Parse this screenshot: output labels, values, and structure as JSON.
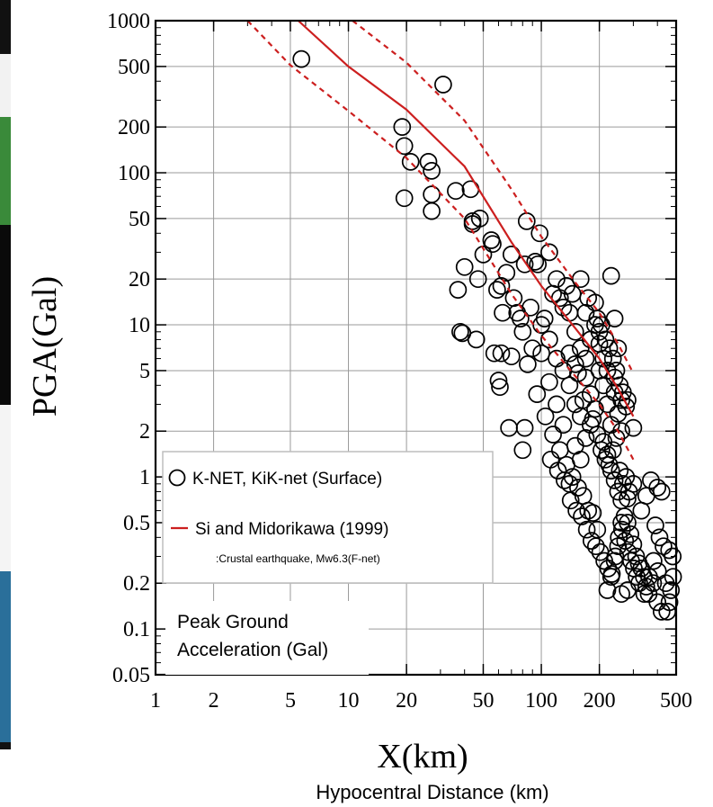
{
  "chart_data": {
    "type": "scatter",
    "xlabel": "X(km)",
    "ylabel": "PGA(Gal)",
    "x_caption": "Hypocentral Distance (km)",
    "x_scale": "log",
    "y_scale": "log",
    "xlim": [
      1,
      500
    ],
    "ylim": [
      0.05,
      1000
    ],
    "grid": true,
    "x_ticks": [
      "1",
      "2",
      "5",
      "10",
      "20",
      "50",
      "100",
      "200",
      "500"
    ],
    "x_tick_values": [
      1,
      2,
      5,
      10,
      20,
      50,
      100,
      200,
      500
    ],
    "y_ticks": [
      "1000",
      "500",
      "200",
      "100",
      "50",
      "20",
      "10",
      "5",
      "2",
      "1",
      "0.5",
      "0.2",
      "0.1",
      "0.05"
    ],
    "y_tick_values": [
      1000,
      500,
      200,
      100,
      50,
      20,
      10,
      5,
      2,
      1,
      0.5,
      0.2,
      0.1,
      0.05
    ],
    "legend": {
      "placement": "lower-left",
      "items": [
        {
          "label": "K-NET, KiK-net (Surface)",
          "marker": "open-circle",
          "color": "#000000"
        },
        {
          "label": "Si and Midorikawa (1999)",
          "marker": "line",
          "color": "#cc1f1f"
        }
      ],
      "note": ":Crustal earthquake, Mw6.3(F-net)"
    },
    "annotation": [
      "Peak Ground",
      "Acceleration (Gal)"
    ],
    "colors": {
      "observations": "#000000",
      "model": "#cc1f1f"
    },
    "series": [
      {
        "name": "K-NET, KiK-net (Surface)",
        "type": "scatter",
        "marker": "open-circle",
        "points": [
          [
            5.7,
            560
          ],
          [
            31,
            380
          ],
          [
            19,
            200
          ],
          [
            19.5,
            150
          ],
          [
            21,
            118
          ],
          [
            26,
            118
          ],
          [
            27,
            103
          ],
          [
            19.5,
            68
          ],
          [
            27,
            72
          ],
          [
            36,
            76
          ],
          [
            43,
            78
          ],
          [
            27,
            56
          ],
          [
            44,
            48
          ],
          [
            48,
            50
          ],
          [
            55,
            36
          ],
          [
            56,
            34
          ],
          [
            44,
            46
          ],
          [
            40,
            24
          ],
          [
            37,
            17
          ],
          [
            47,
            20
          ],
          [
            50,
            29
          ],
          [
            38,
            9
          ],
          [
            39,
            8.8
          ],
          [
            46,
            8
          ],
          [
            59,
            17
          ],
          [
            62,
            18
          ],
          [
            63,
            12
          ],
          [
            57,
            6.5
          ],
          [
            60,
            4.3
          ],
          [
            61,
            3.9
          ],
          [
            70,
            6.2
          ],
          [
            68,
            2.1
          ],
          [
            82,
            2.1
          ],
          [
            80,
            1.5
          ],
          [
            82,
            25
          ],
          [
            93,
            26
          ],
          [
            96,
            25
          ],
          [
            98,
            40
          ],
          [
            84,
            48
          ],
          [
            70,
            29
          ],
          [
            62,
            6.5
          ],
          [
            110,
            30
          ],
          [
            120,
            20
          ],
          [
            125,
            15
          ],
          [
            130,
            13
          ],
          [
            140,
            12
          ],
          [
            150,
            9
          ],
          [
            160,
            20
          ],
          [
            170,
            12
          ],
          [
            180,
            8
          ],
          [
            190,
            14
          ],
          [
            200,
            9
          ],
          [
            210,
            6
          ],
          [
            230,
            21
          ],
          [
            240,
            11
          ],
          [
            250,
            7
          ],
          [
            100,
            10
          ],
          [
            110,
            8
          ],
          [
            120,
            6
          ],
          [
            130,
            5
          ],
          [
            140,
            4
          ],
          [
            150,
            3
          ],
          [
            160,
            2.5
          ],
          [
            170,
            4.5
          ],
          [
            180,
            3.5
          ],
          [
            190,
            2.8
          ],
          [
            200,
            5
          ],
          [
            210,
            4
          ],
          [
            220,
            3
          ],
          [
            230,
            2.2
          ],
          [
            240,
            3.6
          ],
          [
            250,
            2.6
          ],
          [
            260,
            2
          ],
          [
            280,
            3.2
          ],
          [
            300,
            2.1
          ],
          [
            95,
            3.5
          ],
          [
            105,
            2.5
          ],
          [
            115,
            1.9
          ],
          [
            125,
            1.5
          ],
          [
            135,
            1.2
          ],
          [
            145,
            1.0
          ],
          [
            155,
            0.85
          ],
          [
            165,
            0.75
          ],
          [
            175,
            0.6
          ],
          [
            185,
            0.58
          ],
          [
            195,
            0.45
          ],
          [
            140,
            0.9
          ],
          [
            150,
            1.6
          ],
          [
            160,
            1.3
          ],
          [
            170,
            1.8
          ],
          [
            180,
            2.2
          ],
          [
            210,
            1.7
          ],
          [
            220,
            1.4
          ],
          [
            230,
            1.1
          ],
          [
            240,
            0.95
          ],
          [
            250,
            0.8
          ],
          [
            260,
            0.7
          ],
          [
            270,
            0.55
          ],
          [
            280,
            0.5
          ],
          [
            290,
            0.42
          ],
          [
            300,
            0.36
          ],
          [
            310,
            0.3
          ],
          [
            320,
            0.27
          ],
          [
            330,
            0.25
          ],
          [
            340,
            0.22
          ],
          [
            350,
            0.19
          ],
          [
            360,
            0.17
          ],
          [
            380,
            0.2
          ],
          [
            400,
            0.15
          ],
          [
            420,
            0.13
          ],
          [
            450,
            0.13
          ],
          [
            470,
            0.18
          ],
          [
            480,
            0.3
          ],
          [
            390,
            0.48
          ],
          [
            410,
            0.4
          ],
          [
            430,
            0.35
          ],
          [
            460,
            0.33
          ],
          [
            400,
            0.85
          ],
          [
            420,
            0.8
          ],
          [
            370,
            0.95
          ],
          [
            350,
            0.75
          ],
          [
            330,
            0.6
          ],
          [
            300,
            0.9
          ],
          [
            280,
            0.72
          ],
          [
            260,
            0.5
          ],
          [
            250,
            0.35
          ],
          [
            240,
            0.28
          ],
          [
            230,
            0.22
          ],
          [
            220,
            0.18
          ],
          [
            260,
            0.17
          ],
          [
            280,
            0.18
          ],
          [
            120,
            3
          ],
          [
            130,
            2.2
          ],
          [
            150,
            5.5
          ],
          [
            160,
            7
          ],
          [
            170,
            6
          ],
          [
            190,
            10
          ],
          [
            200,
            7.5
          ],
          [
            220,
            5
          ],
          [
            240,
            4.5
          ],
          [
            260,
            3.2
          ],
          [
            110,
            4.2
          ],
          [
            100,
            6.5
          ],
          [
            90,
            7
          ],
          [
            85,
            5.5
          ],
          [
            80,
            9
          ],
          [
            75,
            12
          ],
          [
            72,
            15
          ],
          [
            66,
            22
          ],
          [
            78,
            11
          ],
          [
            88,
            13
          ],
          [
            104,
            11
          ],
          [
            115,
            16
          ],
          [
            135,
            18
          ],
          [
            145,
            16
          ],
          [
            175,
            15
          ],
          [
            195,
            11
          ],
          [
            205,
            10
          ],
          [
            215,
            8
          ],
          [
            225,
            7
          ],
          [
            235,
            6
          ],
          [
            245,
            5
          ],
          [
            255,
            4
          ],
          [
            265,
            3.6
          ],
          [
            275,
            2.9
          ],
          [
            140,
            6.5
          ],
          [
            155,
            4.8
          ],
          [
            165,
            3.2
          ],
          [
            185,
            2.4
          ],
          [
            195,
            1.9
          ],
          [
            205,
            1.5
          ],
          [
            215,
            1.3
          ],
          [
            225,
            1.2
          ],
          [
            235,
            1.5
          ],
          [
            245,
            1.8
          ],
          [
            255,
            1.1
          ],
          [
            265,
            0.9
          ],
          [
            275,
            1.0
          ],
          [
            285,
            0.8
          ],
          [
            112,
            1.3
          ],
          [
            122,
            1.1
          ],
          [
            132,
            0.95
          ],
          [
            142,
            0.7
          ],
          [
            152,
            0.6
          ],
          [
            162,
            0.55
          ],
          [
            172,
            0.45
          ],
          [
            182,
            0.38
          ],
          [
            192,
            0.35
          ],
          [
            202,
            0.32
          ],
          [
            212,
            0.28
          ],
          [
            222,
            0.25
          ],
          [
            232,
            0.23
          ],
          [
            242,
            0.3
          ],
          [
            252,
            0.4
          ],
          [
            262,
            0.45
          ],
          [
            272,
            0.38
          ],
          [
            282,
            0.32
          ],
          [
            292,
            0.28
          ],
          [
            302,
            0.25
          ],
          [
            312,
            0.22
          ],
          [
            322,
            0.2
          ],
          [
            342,
            0.17
          ],
          [
            362,
            0.22
          ],
          [
            382,
            0.28
          ],
          [
            402,
            0.24
          ],
          [
            442,
            0.2
          ],
          [
            462,
            0.15
          ],
          [
            482,
            0.22
          ]
        ]
      },
      {
        "name": "Si and Midorikawa (1999)",
        "type": "line",
        "style": "solid",
        "points": [
          [
            5.5,
            1000
          ],
          [
            10,
            500
          ],
          [
            20,
            260
          ],
          [
            40,
            110
          ],
          [
            70,
            35
          ],
          [
            100,
            18
          ],
          [
            150,
            9.5
          ],
          [
            200,
            6
          ],
          [
            250,
            3.8
          ],
          [
            300,
            2.5
          ]
        ]
      },
      {
        "name": "upper",
        "type": "line",
        "style": "dashed",
        "points": [
          [
            10.5,
            1000
          ],
          [
            20,
            530
          ],
          [
            40,
            220
          ],
          [
            70,
            78
          ],
          [
            100,
            38
          ],
          [
            150,
            19
          ],
          [
            200,
            12
          ],
          [
            250,
            7.5
          ],
          [
            300,
            4.8
          ]
        ]
      },
      {
        "name": "lower",
        "type": "line",
        "style": "dashed",
        "points": [
          [
            3.0,
            1000
          ],
          [
            5,
            510
          ],
          [
            10,
            255
          ],
          [
            20,
            125
          ],
          [
            40,
            50
          ],
          [
            70,
            16
          ],
          [
            100,
            8.5
          ],
          [
            150,
            4.6
          ],
          [
            200,
            3.0
          ],
          [
            250,
            2.0
          ],
          [
            300,
            1.3
          ]
        ]
      }
    ]
  }
}
